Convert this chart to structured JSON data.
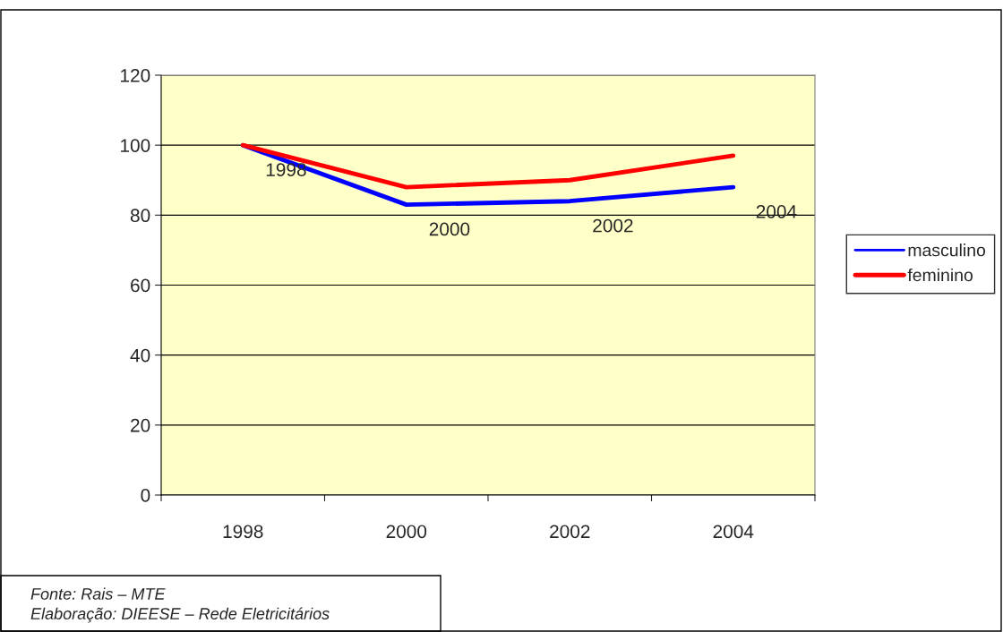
{
  "chart_data": {
    "type": "line",
    "categories": [
      "1998",
      "2000",
      "2002",
      "2004"
    ],
    "series": [
      {
        "name": "masculino",
        "color": "#0000ff",
        "values": [
          100,
          83,
          84,
          88
        ]
      },
      {
        "name": "feminino",
        "color": "#ff0000",
        "values": [
          100,
          88,
          90,
          97
        ]
      }
    ],
    "ylim": [
      0,
      120
    ],
    "yticks": [
      0,
      20,
      40,
      60,
      80,
      100,
      120
    ],
    "grid": "y",
    "legend": "right",
    "marker": "none",
    "line_style": "solid",
    "annotations": [
      {
        "text": "1998",
        "x": "1998",
        "y": 100
      },
      {
        "text": "2000",
        "x": "2000",
        "y": 83
      },
      {
        "text": "2002",
        "x": "2002",
        "y": 84
      },
      {
        "text": "2004",
        "x": "2004",
        "y": 88
      },
      "Fonte: Rais – MTE",
      "Elaboração: DIEESE – Rede Eletricitários"
    ]
  }
}
